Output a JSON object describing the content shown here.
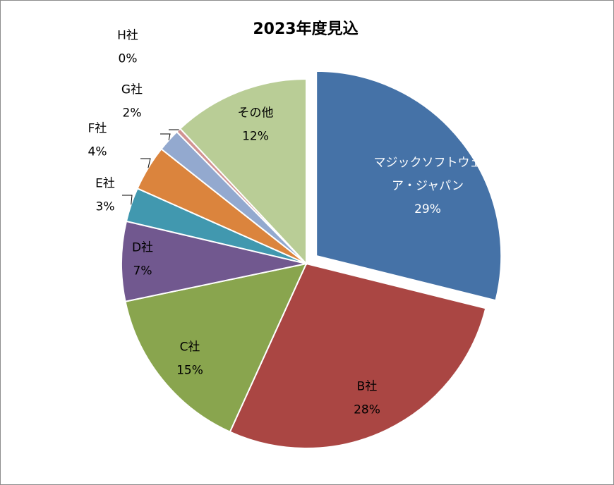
{
  "chart_data": {
    "type": "pie",
    "title": "2023年度見込",
    "slices": [
      {
        "name": "マジックソフトウェア・ジャパン",
        "name_lines": [
          "マジックソフトウェ",
          "ア・ジャパン"
        ],
        "value": 29,
        "label": "29%",
        "color": "#4572a7",
        "text_color": "#ffffff",
        "exploded": true
      },
      {
        "name": "B社",
        "value": 28,
        "label": "28%",
        "color": "#aa4643",
        "text_color": "#000000"
      },
      {
        "name": "C社",
        "value": 15,
        "label": "15%",
        "color": "#89a54e",
        "text_color": "#000000"
      },
      {
        "name": "D社",
        "value": 7,
        "label": "7%",
        "color": "#71588f",
        "text_color": "#000000"
      },
      {
        "name": "E社",
        "value": 3,
        "label": "3%",
        "color": "#4198af",
        "text_color": "#000000"
      },
      {
        "name": "F社",
        "value": 4,
        "label": "4%",
        "color": "#db843d",
        "text_color": "#000000"
      },
      {
        "name": "G社",
        "value": 2,
        "label": "2%",
        "color": "#93a9cf",
        "text_color": "#000000"
      },
      {
        "name": "H社",
        "value": 0.4,
        "label": "0%",
        "color": "#d19392",
        "text_color": "#000000"
      },
      {
        "name": "その他",
        "value": 12,
        "label": "12%",
        "color": "#b9cd96",
        "text_color": "#000000"
      }
    ]
  }
}
